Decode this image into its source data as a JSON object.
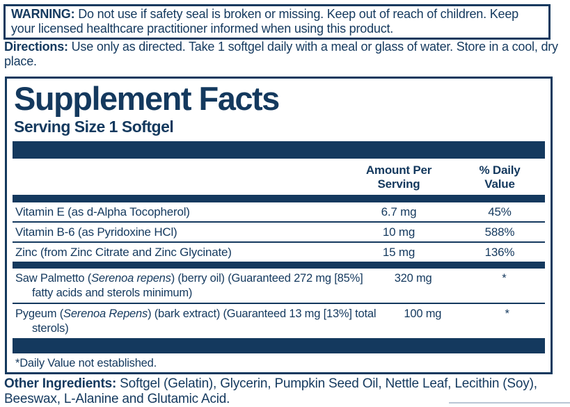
{
  "colors": {
    "navy": "#14395e",
    "background": "#ffffff"
  },
  "warning": {
    "label": "WARNING:",
    "text": " Do not use if safety seal is broken or missing. Keep out of reach of children. Keep your licensed healthcare practitioner informed when using this product."
  },
  "directions": {
    "label": "Directions:",
    "text": " Use only as directed. Take 1 softgel daily with a meal or glass of water. Store in a cool, dry place."
  },
  "panel": {
    "title": "Supplement Facts",
    "serving_size": "Serving Size 1 Softgel",
    "columns": {
      "amount": [
        "Amount Per",
        "Serving"
      ],
      "daily_value": [
        "% Daily",
        "Value"
      ]
    },
    "rows": [
      {
        "name": "Vitamin E (as d-Alpha Tocopherol)",
        "amount": "6.7 mg",
        "dv": "45%"
      },
      {
        "name": "Vitamin B-6 (as Pyridoxine HCl)",
        "amount": "10 mg",
        "dv": "588%"
      },
      {
        "name": "Zinc (from Zinc Citrate and Zinc Glycinate)",
        "amount": "15 mg",
        "dv": "136%"
      }
    ],
    "herb_rows": [
      {
        "prefix": "Saw Palmetto (",
        "species": "Serenoa repens",
        "suffix": ") (berry oil) (Guaranteed 272 mg [85%]",
        "line2": "fatty acids and sterols minimum)",
        "amount": "320 mg",
        "dv": "*"
      },
      {
        "prefix": "Pygeum (",
        "species": "Serenoa Repens",
        "suffix": ") (bark extract) (Guaranteed 13 mg [13%] total",
        "line2": "sterols)",
        "amount": "100 mg",
        "dv": "*"
      }
    ],
    "footnote": "*Daily Value not established."
  },
  "other_ingredients": {
    "label": "Other Ingredients:",
    "text": " Softgel (Gelatin), Glycerin, Pumpkin Seed Oil, Nettle Leaf, Lecithin (Soy), Beeswax, L-Alanine and Glutamic Acid."
  }
}
